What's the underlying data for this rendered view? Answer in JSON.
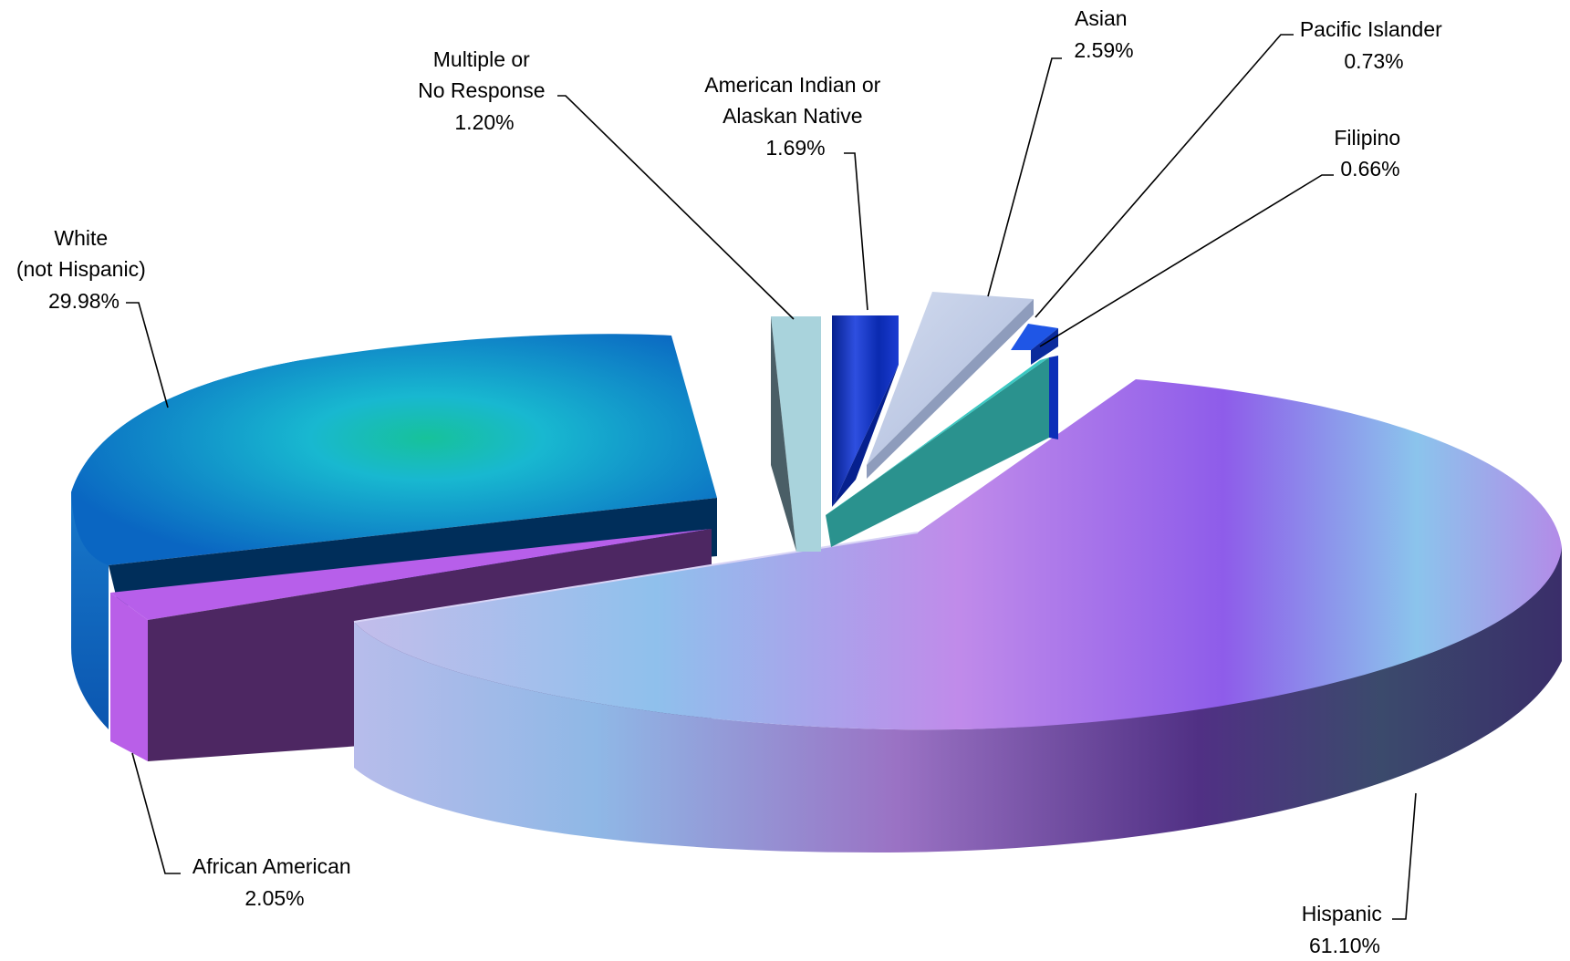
{
  "chart_data": {
    "type": "pie",
    "style": "3d-exploded",
    "unit": "%",
    "slices": [
      {
        "key": "hispanic",
        "label_lines": [
          "Hispanic"
        ],
        "value_label": "61.10%",
        "value": 61.1,
        "color": "#8E5CEA"
      },
      {
        "key": "african-american",
        "label_lines": [
          "African American"
        ],
        "value_label": "2.05%",
        "value": 2.05,
        "color": "#B75FEA"
      },
      {
        "key": "white",
        "label_lines": [
          "White",
          "(not Hispanic)"
        ],
        "value_label": "29.98%",
        "value": 29.98,
        "color": "#1B8FD0"
      },
      {
        "key": "multiple",
        "label_lines": [
          "Multiple or",
          "No Response"
        ],
        "value_label": "1.20%",
        "value": 1.2,
        "color": "#A9D3DC"
      },
      {
        "key": "american-indian",
        "label_lines": [
          "American Indian or",
          "Alaskan Native"
        ],
        "value_label": "1.69%",
        "value": 1.69,
        "color": "#0B2FB8"
      },
      {
        "key": "asian",
        "label_lines": [
          "Asian"
        ],
        "value_label": "2.59%",
        "value": 2.59,
        "color": "#C3CFE6"
      },
      {
        "key": "pacific-islander",
        "label_lines": [
          "Pacific Islander"
        ],
        "value_label": "0.73%",
        "value": 0.73,
        "color": "#1F56E6"
      },
      {
        "key": "filipino",
        "label_lines": [
          "Filipino"
        ],
        "value_label": "0.66%",
        "value": 0.66,
        "color": "#2DB3B0"
      }
    ]
  }
}
